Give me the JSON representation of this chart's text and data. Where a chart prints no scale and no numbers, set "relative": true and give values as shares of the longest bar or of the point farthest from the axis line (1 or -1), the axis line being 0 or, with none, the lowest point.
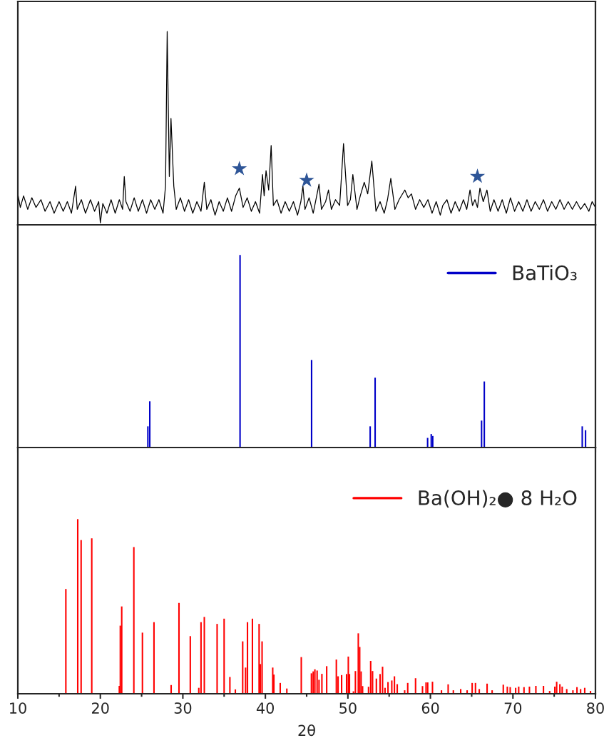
{
  "chart_data": [
    {
      "type": "line",
      "relative": true,
      "xlim": [
        10,
        80
      ],
      "xticks": [
        10,
        20,
        30,
        40,
        50,
        60,
        70,
        80
      ],
      "tick_labels": false,
      "series": [
        {
          "type": "line",
          "color": "#000000",
          "x": [
            10.0,
            10.3,
            10.7,
            11.2,
            11.7,
            12.2,
            12.8,
            13.3,
            13.9,
            14.4,
            15.0,
            15.5,
            16.0,
            16.5,
            17.0,
            17.2,
            17.7,
            18.2,
            18.8,
            19.3,
            19.8,
            20.0,
            20.3,
            20.8,
            21.3,
            21.8,
            22.3,
            22.7,
            22.9,
            23.1,
            23.6,
            24.1,
            24.6,
            25.1,
            25.6,
            26.1,
            26.6,
            27.1,
            27.6,
            27.9,
            28.1,
            28.36,
            28.56,
            28.9,
            29.2,
            29.7,
            30.2,
            30.7,
            31.2,
            31.7,
            32.2,
            32.6,
            32.9,
            33.4,
            33.9,
            34.4,
            34.9,
            35.4,
            35.9,
            36.4,
            36.85,
            37.3,
            37.8,
            38.3,
            38.8,
            39.3,
            39.65,
            39.85,
            40.08,
            40.4,
            40.7,
            40.97,
            41.4,
            41.9,
            42.4,
            42.9,
            43.4,
            43.9,
            44.3,
            44.55,
            44.8,
            45.3,
            45.8,
            46.5,
            46.8,
            47.3,
            47.65,
            48.0,
            48.5,
            49.0,
            49.47,
            49.96,
            50.3,
            50.6,
            51.1,
            51.5,
            51.98,
            52.4,
            52.9,
            53.4,
            53.9,
            54.4,
            54.8,
            55.2,
            55.7,
            56.2,
            56.9,
            57.3,
            57.7,
            58.2,
            58.7,
            59.2,
            59.7,
            60.2,
            60.7,
            61.2,
            61.5,
            62.0,
            62.5,
            63.0,
            63.5,
            64.0,
            64.4,
            64.8,
            65.1,
            65.4,
            65.7,
            66.0,
            66.4,
            66.85,
            67.25,
            67.7,
            68.2,
            68.7,
            69.2,
            69.7,
            70.2,
            70.7,
            71.2,
            71.7,
            72.2,
            72.7,
            73.2,
            73.7,
            74.2,
            74.7,
            75.2,
            75.7,
            76.2,
            76.7,
            77.2,
            77.7,
            78.2,
            78.7,
            79.2,
            79.6,
            80.0
          ],
          "values": [
            0.16,
            0.09,
            0.15,
            0.08,
            0.14,
            0.09,
            0.13,
            0.07,
            0.12,
            0.06,
            0.12,
            0.07,
            0.12,
            0.06,
            0.2,
            0.08,
            0.13,
            0.06,
            0.13,
            0.07,
            0.12,
            0.01,
            0.11,
            0.06,
            0.13,
            0.06,
            0.13,
            0.08,
            0.25,
            0.12,
            0.07,
            0.14,
            0.07,
            0.13,
            0.06,
            0.13,
            0.08,
            0.13,
            0.06,
            0.2,
            1.0,
            0.25,
            0.55,
            0.2,
            0.08,
            0.14,
            0.07,
            0.13,
            0.06,
            0.12,
            0.07,
            0.22,
            0.08,
            0.13,
            0.05,
            0.12,
            0.07,
            0.14,
            0.07,
            0.15,
            0.19,
            0.09,
            0.14,
            0.07,
            0.12,
            0.06,
            0.26,
            0.15,
            0.28,
            0.18,
            0.41,
            0.1,
            0.13,
            0.06,
            0.12,
            0.07,
            0.12,
            0.05,
            0.12,
            0.2,
            0.08,
            0.14,
            0.06,
            0.21,
            0.08,
            0.12,
            0.18,
            0.08,
            0.13,
            0.1,
            0.42,
            0.1,
            0.13,
            0.26,
            0.08,
            0.15,
            0.22,
            0.16,
            0.33,
            0.07,
            0.12,
            0.06,
            0.13,
            0.24,
            0.08,
            0.13,
            0.18,
            0.14,
            0.16,
            0.08,
            0.13,
            0.09,
            0.13,
            0.06,
            0.12,
            0.05,
            0.1,
            0.13,
            0.06,
            0.12,
            0.07,
            0.13,
            0.08,
            0.18,
            0.1,
            0.13,
            0.09,
            0.19,
            0.12,
            0.18,
            0.07,
            0.13,
            0.07,
            0.13,
            0.06,
            0.14,
            0.07,
            0.12,
            0.07,
            0.13,
            0.07,
            0.12,
            0.08,
            0.13,
            0.07,
            0.12,
            0.08,
            0.13,
            0.08,
            0.12,
            0.08,
            0.12,
            0.08,
            0.11,
            0.07,
            0.12,
            0.09
          ]
        },
        {
          "type": "scatter",
          "marker": "star",
          "color": "#2e5597",
          "x": [
            36.85,
            45.0,
            65.7
          ],
          "values": [
            0.29,
            0.23,
            0.25
          ]
        }
      ]
    },
    {
      "type": "bar",
      "relative": true,
      "xlim": [
        10,
        80
      ],
      "xticks": [
        10,
        20,
        30,
        40,
        50,
        60,
        70,
        80
      ],
      "tick_labels": false,
      "legend": "top right",
      "x": [
        25.76,
        25.99,
        36.93,
        45.6,
        52.7,
        53.3,
        59.66,
        60.1,
        60.28,
        66.2,
        66.53,
        78.4,
        78.8
      ],
      "series": [
        {
          "name": "BaTiO₃",
          "color": "#0000c8",
          "values": [
            0.11,
            0.24,
            1.0,
            0.455,
            0.11,
            0.363,
            0.05,
            0.07,
            0.06,
            0.14,
            0.343,
            0.11,
            0.09
          ]
        }
      ]
    },
    {
      "type": "bar",
      "relative": true,
      "xlim": [
        10,
        80
      ],
      "xticks": [
        10,
        20,
        30,
        40,
        50,
        60,
        70,
        80
      ],
      "tick_labels": "x",
      "legend": "top right",
      "xlabel": "2θ",
      "x": [
        15.82,
        17.26,
        17.67,
        18.96,
        22.3,
        22.42,
        22.59,
        24.06,
        25.1,
        26.5,
        28.58,
        29.53,
        30.9,
        31.93,
        32.2,
        32.6,
        34.15,
        35.0,
        35.7,
        36.36,
        37.25,
        37.6,
        37.83,
        38.43,
        39.24,
        39.39,
        39.6,
        40.89,
        41.03,
        41.8,
        42.6,
        44.35,
        45.58,
        45.8,
        46.0,
        46.27,
        46.5,
        46.85,
        47.43,
        48.6,
        48.81,
        49.24,
        49.84,
        50.05,
        50.19,
        50.67,
        50.91,
        51.26,
        51.43,
        51.6,
        51.78,
        52.5,
        52.76,
        52.99,
        53.45,
        53.9,
        54.2,
        54.5,
        54.86,
        55.32,
        55.64,
        55.98,
        56.88,
        57.25,
        58.2,
        59.04,
        59.47,
        59.67,
        60.25,
        61.34,
        62.15,
        62.78,
        63.67,
        64.45,
        65.06,
        65.46,
        65.92,
        66.87,
        67.48,
        68.83,
        69.32,
        69.67,
        70.33,
        70.7,
        71.34,
        72.0,
        72.78,
        73.7,
        74.45,
        75.08,
        75.3,
        75.69,
        75.97,
        76.52,
        77.27,
        77.76,
        78.2,
        78.7,
        79.4
      ],
      "series": [
        {
          "name": "Ba(OH)₂● 8 H₂O",
          "color": "#ff0000",
          "values": [
            0.6,
            1.0,
            0.88,
            0.89,
            0.045,
            0.39,
            0.5,
            0.84,
            0.35,
            0.41,
            0.05,
            0.52,
            0.33,
            0.034,
            0.41,
            0.44,
            0.4,
            0.43,
            0.096,
            0.025,
            0.3,
            0.15,
            0.41,
            0.43,
            0.4,
            0.17,
            0.3,
            0.15,
            0.11,
            0.062,
            0.03,
            0.21,
            0.117,
            0.128,
            0.14,
            0.133,
            0.08,
            0.114,
            0.158,
            0.196,
            0.1,
            0.107,
            0.113,
            0.213,
            0.113,
            0.014,
            0.13,
            0.346,
            0.268,
            0.128,
            0.044,
            0.04,
            0.188,
            0.13,
            0.087,
            0.113,
            0.155,
            0.034,
            0.067,
            0.076,
            0.1,
            0.055,
            0.02,
            0.062,
            0.089,
            0.044,
            0.065,
            0.065,
            0.069,
            0.02,
            0.054,
            0.02,
            0.027,
            0.02,
            0.062,
            0.062,
            0.027,
            0.058,
            0.02,
            0.052,
            0.041,
            0.038,
            0.034,
            0.041,
            0.038,
            0.041,
            0.045,
            0.045,
            0.016,
            0.041,
            0.069,
            0.055,
            0.041,
            0.027,
            0.02,
            0.038,
            0.027,
            0.034,
            0.016
          ]
        }
      ]
    }
  ]
}
